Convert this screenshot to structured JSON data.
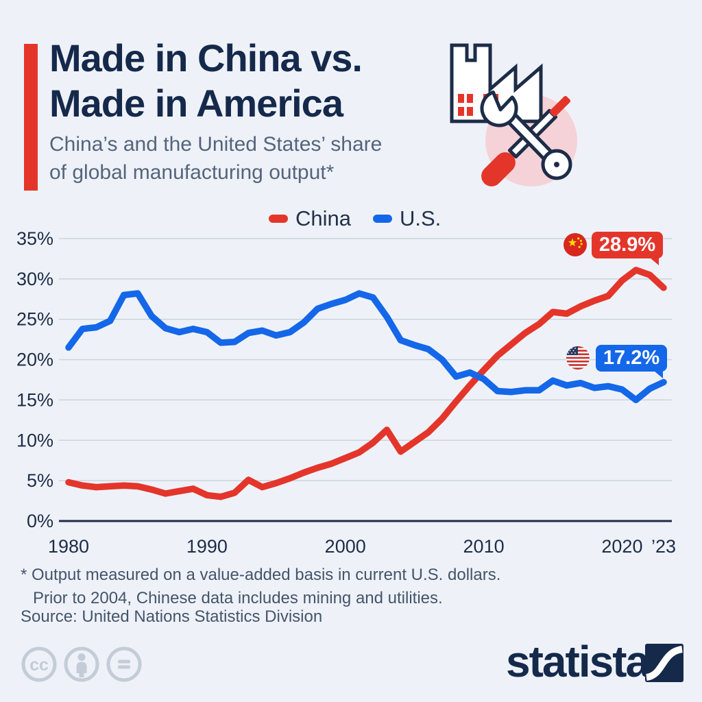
{
  "header": {
    "title_line1": "Made in China vs.",
    "title_line2": "Made in America",
    "subtitle_line1": "China’s and the United States’ share",
    "subtitle_line2": "of global manufacturing output*"
  },
  "icons": {
    "header_icon": "factory-with-wrench-and-screwdriver-icon",
    "flags": [
      "china-flag-icon",
      "us-flag-icon"
    ],
    "license_icons": [
      "cc-icon",
      "by-person-icon",
      "nd-equals-icon"
    ],
    "brand_icon": "statista-s-curve-logo-icon"
  },
  "colors": {
    "china_red": "#e4352b",
    "us_blue": "#1467e8",
    "navy": "#15294b",
    "background": "#eef2f8",
    "grid": "#ccd3dc",
    "axis": "#1d2c47",
    "pink_circle": "#f5d2d7",
    "license_gray": "#c3ccd7"
  },
  "chart_data": {
    "type": "line",
    "title": "China’s and the United States’ share of global manufacturing output",
    "x_years": [
      1980,
      1981,
      1982,
      1983,
      1984,
      1985,
      1986,
      1987,
      1988,
      1989,
      1990,
      1991,
      1992,
      1993,
      1994,
      1995,
      1996,
      1997,
      1998,
      1999,
      2000,
      2001,
      2002,
      2003,
      2004,
      2005,
      2006,
      2007,
      2008,
      2009,
      2010,
      2011,
      2012,
      2013,
      2014,
      2015,
      2016,
      2017,
      2018,
      2019,
      2020,
      2021,
      2022,
      2023
    ],
    "series": [
      {
        "name": "China",
        "color_key": "china_red",
        "values": [
          4.8,
          4.4,
          4.2,
          4.3,
          4.4,
          4.3,
          3.9,
          3.4,
          3.7,
          4.0,
          3.2,
          3.0,
          3.5,
          5.1,
          4.2,
          4.7,
          5.3,
          6.0,
          6.6,
          7.1,
          7.8,
          8.5,
          9.7,
          11.3,
          8.6,
          9.8,
          11.0,
          12.7,
          14.8,
          16.8,
          18.7,
          20.5,
          21.9,
          23.3,
          24.4,
          25.9,
          25.7,
          26.6,
          27.3,
          27.9,
          29.8,
          31.1,
          30.5,
          28.9
        ]
      },
      {
        "name": "U.S.",
        "color_key": "us_blue",
        "values": [
          21.5,
          23.8,
          24.0,
          24.8,
          28.0,
          28.2,
          25.4,
          23.9,
          23.4,
          23.8,
          23.4,
          22.1,
          22.2,
          23.3,
          23.6,
          23.0,
          23.4,
          24.6,
          26.3,
          26.9,
          27.4,
          28.2,
          27.7,
          25.3,
          22.4,
          21.8,
          21.3,
          20.0,
          17.9,
          18.4,
          17.6,
          16.1,
          16.0,
          16.2,
          16.2,
          17.4,
          16.8,
          17.1,
          16.5,
          16.7,
          16.3,
          15.0,
          16.4,
          17.2
        ]
      }
    ],
    "ylim": [
      0,
      35
    ],
    "yticks": [
      {
        "value": 35,
        "label": "35%"
      },
      {
        "value": 30,
        "label": "30%"
      },
      {
        "value": 25,
        "label": "25%"
      },
      {
        "value": 20,
        "label": "20%"
      },
      {
        "value": 15,
        "label": "15%"
      },
      {
        "value": 10,
        "label": "10%"
      },
      {
        "value": 5,
        "label": "5%"
      },
      {
        "value": 0,
        "label": "0%"
      }
    ],
    "xticks": [
      {
        "year": 1980,
        "label": "1980"
      },
      {
        "year": 1990,
        "label": "1990"
      },
      {
        "year": 2000,
        "label": "2000"
      },
      {
        "year": 2010,
        "label": "2010"
      },
      {
        "year": 2020,
        "label": "2020"
      },
      {
        "year": 2023,
        "label": "’23"
      }
    ],
    "grid": "horizontal",
    "legend_position": "top-center",
    "end_labels": [
      {
        "series": "China",
        "value": "28.9%",
        "flag": "china",
        "color_key": "china_red"
      },
      {
        "series": "U.S.",
        "value": "17.2%",
        "flag": "us",
        "color_key": "us_blue"
      }
    ]
  },
  "footnotes": {
    "line1": "* Output measured on a value-added basis in current U.S. dollars.",
    "line2": "Prior to 2004, Chinese data includes mining and utilities.",
    "source": "Source: United Nations Statistics Division"
  },
  "branding": {
    "logo_text": "statista"
  }
}
